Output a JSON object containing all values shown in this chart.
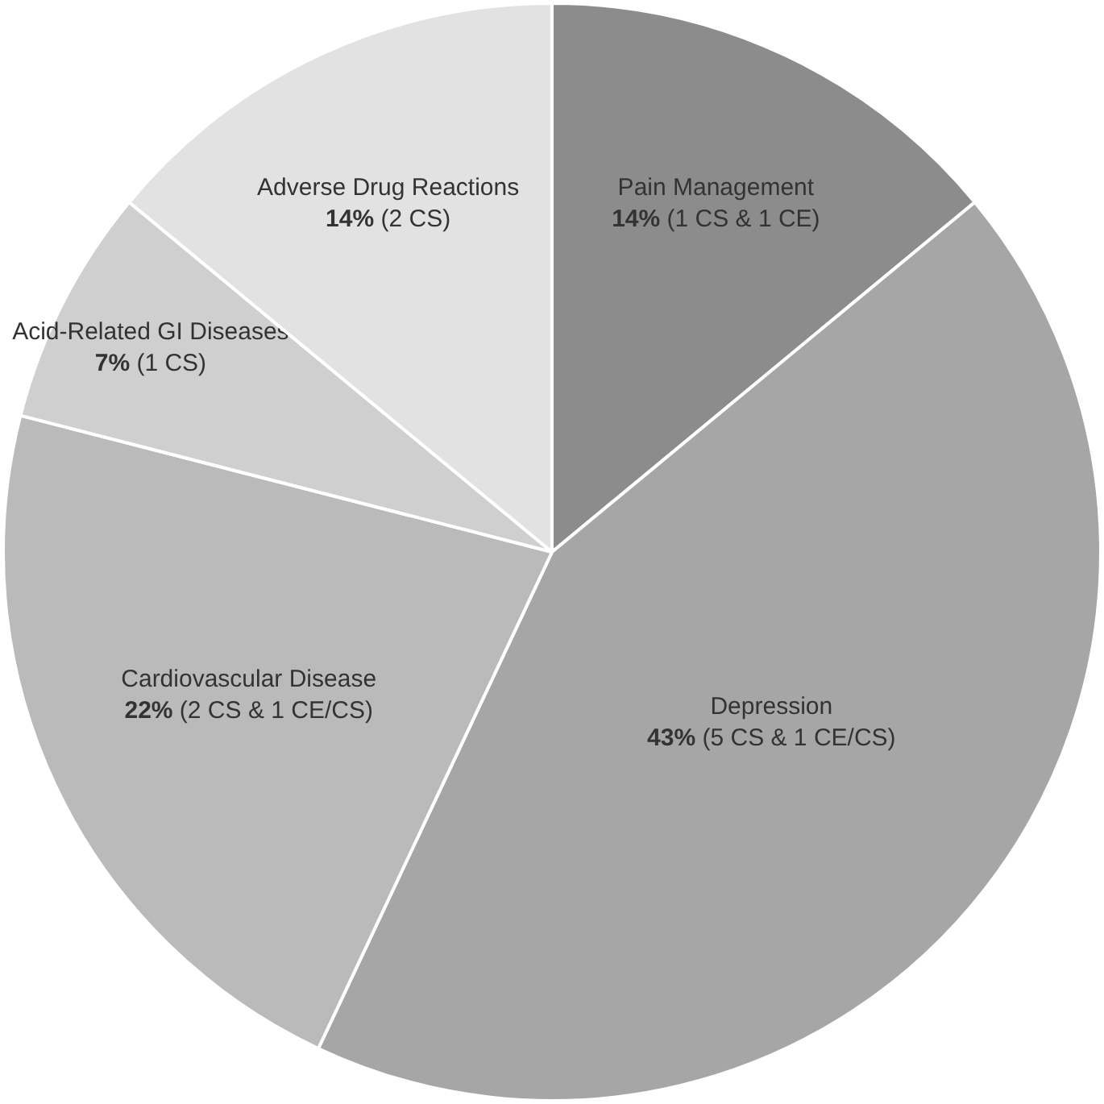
{
  "chart_data": {
    "type": "pie",
    "categories": [
      "Pain Management",
      "Depression",
      "Cardiovascular Disease",
      "Acid-Related GI Diseases",
      "Adverse Drug Reactions"
    ],
    "values": [
      14,
      43,
      22,
      7,
      14
    ],
    "value_labels": [
      "14% (1 CS & 1 CE)",
      "43% (5 CS & 1 CE/CS)",
      "22% (2 CS & 1 CE/CS)",
      "7% (1 CS)",
      "14% (2 CS)"
    ],
    "colors": [
      "#8c8c8c",
      "#a6a6a6",
      "#bababa",
      "#cfcfcf",
      "#e2e2e2"
    ],
    "legend": false
  }
}
